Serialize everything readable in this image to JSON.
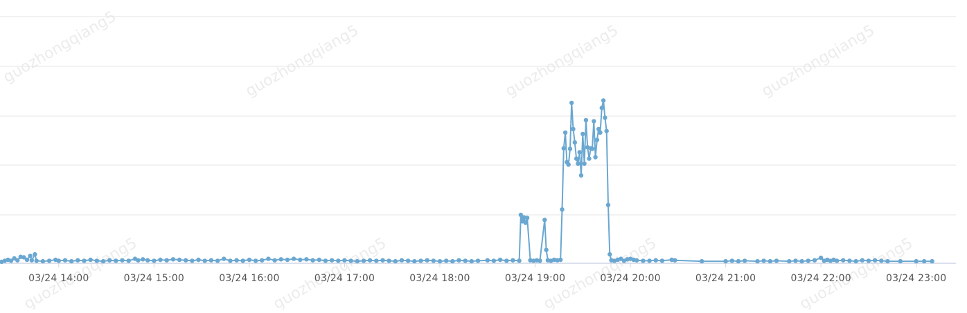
{
  "theme": {
    "series_color": "#6aa7d1",
    "grid_color": "#e6e6e6",
    "axis_color": "#cfd6e6"
  },
  "watermark": "guozhongqiang5",
  "chart_data": {
    "type": "line",
    "title": "",
    "xlabel": "",
    "ylabel": "",
    "y_tick_labels_visible": false,
    "grid": true,
    "x_axis": {
      "ticks": [
        "03/24 14:00",
        "03/24 15:00",
        "03/24 16:00",
        "03/24 17:00",
        "03/24 18:00",
        "03/24 19:00",
        "03/24 20:00",
        "03/24 21:00",
        "03/24 22:00",
        "03/24 23:00"
      ],
      "range": [
        "03/24 13:23",
        "03/24 23:25"
      ]
    },
    "ylim": [
      0,
      5
    ],
    "series": [
      {
        "color": "#6aa7d1",
        "points": [
          [
            "13:24",
            0.03
          ],
          [
            "13:26",
            0.05
          ],
          [
            "13:28",
            0.07
          ],
          [
            "13:30",
            0.05
          ],
          [
            "13:32",
            0.1
          ],
          [
            "13:34",
            0.06
          ],
          [
            "13:36",
            0.13
          ],
          [
            "13:38",
            0.12
          ],
          [
            "13:40",
            0.07
          ],
          [
            "13:42",
            0.15
          ],
          [
            "13:43",
            0.06
          ],
          [
            "13:45",
            0.18
          ],
          [
            "13:46",
            0.05
          ],
          [
            "13:50",
            0.04
          ],
          [
            "13:54",
            0.05
          ],
          [
            "13:58",
            0.07
          ],
          [
            "14:00",
            0.05
          ],
          [
            "14:04",
            0.06
          ],
          [
            "14:08",
            0.04
          ],
          [
            "14:12",
            0.06
          ],
          [
            "14:16",
            0.05
          ],
          [
            "14:20",
            0.07
          ],
          [
            "14:24",
            0.05
          ],
          [
            "14:28",
            0.04
          ],
          [
            "14:32",
            0.06
          ],
          [
            "14:36",
            0.05
          ],
          [
            "14:40",
            0.06
          ],
          [
            "14:44",
            0.05
          ],
          [
            "14:48",
            0.09
          ],
          [
            "14:50",
            0.06
          ],
          [
            "14:53",
            0.08
          ],
          [
            "14:56",
            0.06
          ],
          [
            "15:00",
            0.05
          ],
          [
            "15:04",
            0.07
          ],
          [
            "15:08",
            0.06
          ],
          [
            "15:12",
            0.08
          ],
          [
            "15:16",
            0.07
          ],
          [
            "15:20",
            0.06
          ],
          [
            "15:24",
            0.05
          ],
          [
            "15:28",
            0.07
          ],
          [
            "15:32",
            0.05
          ],
          [
            "15:36",
            0.06
          ],
          [
            "15:40",
            0.05
          ],
          [
            "15:44",
            0.09
          ],
          [
            "15:48",
            0.05
          ],
          [
            "15:52",
            0.06
          ],
          [
            "15:56",
            0.05
          ],
          [
            "16:00",
            0.07
          ],
          [
            "16:04",
            0.05
          ],
          [
            "16:08",
            0.06
          ],
          [
            "16:12",
            0.09
          ],
          [
            "16:16",
            0.06
          ],
          [
            "16:20",
            0.08
          ],
          [
            "16:24",
            0.07
          ],
          [
            "16:28",
            0.09
          ],
          [
            "16:32",
            0.07
          ],
          [
            "16:36",
            0.08
          ],
          [
            "16:40",
            0.06
          ],
          [
            "16:44",
            0.07
          ],
          [
            "16:48",
            0.05
          ],
          [
            "16:52",
            0.06
          ],
          [
            "16:56",
            0.05
          ],
          [
            "17:00",
            0.06
          ],
          [
            "17:04",
            0.05
          ],
          [
            "17:08",
            0.04
          ],
          [
            "17:12",
            0.05
          ],
          [
            "17:16",
            0.06
          ],
          [
            "17:20",
            0.05
          ],
          [
            "17:24",
            0.06
          ],
          [
            "17:28",
            0.05
          ],
          [
            "17:32",
            0.04
          ],
          [
            "17:36",
            0.06
          ],
          [
            "17:40",
            0.05
          ],
          [
            "17:44",
            0.04
          ],
          [
            "17:48",
            0.05
          ],
          [
            "17:52",
            0.06
          ],
          [
            "17:56",
            0.05
          ],
          [
            "18:00",
            0.04
          ],
          [
            "18:04",
            0.05
          ],
          [
            "18:08",
            0.04
          ],
          [
            "18:12",
            0.06
          ],
          [
            "18:16",
            0.05
          ],
          [
            "18:20",
            0.04
          ],
          [
            "18:24",
            0.05
          ],
          [
            "18:30",
            0.06
          ],
          [
            "18:34",
            0.05
          ],
          [
            "18:38",
            0.07
          ],
          [
            "18:42",
            0.05
          ],
          [
            "18:46",
            0.06
          ],
          [
            "18:50",
            0.05
          ],
          [
            "18:51",
            0.98
          ],
          [
            "18:52",
            0.85
          ],
          [
            "18:53",
            0.93
          ],
          [
            "18:54",
            0.82
          ],
          [
            "18:55",
            0.92
          ],
          [
            "18:57",
            0.06
          ],
          [
            "18:59",
            0.05
          ],
          [
            "19:01",
            0.06
          ],
          [
            "19:03",
            0.05
          ],
          [
            "19:06",
            0.88
          ],
          [
            "19:07",
            0.27
          ],
          [
            "19:08",
            0.06
          ],
          [
            "19:10",
            0.05
          ],
          [
            "19:12",
            0.07
          ],
          [
            "19:14",
            0.06
          ],
          [
            "19:16",
            0.07
          ],
          [
            "19:17",
            1.09
          ],
          [
            "19:18",
            2.33
          ],
          [
            "19:19",
            2.65
          ],
          [
            "19:20",
            2.05
          ],
          [
            "19:21",
            2.0
          ],
          [
            "19:22",
            2.32
          ],
          [
            "19:23",
            3.25
          ],
          [
            "19:24",
            2.72
          ],
          [
            "19:25",
            2.45
          ],
          [
            "19:26",
            2.12
          ],
          [
            "19:27",
            2.02
          ],
          [
            "19:28",
            2.25
          ],
          [
            "19:29",
            1.78
          ],
          [
            "19:30",
            2.62
          ],
          [
            "19:31",
            2.02
          ],
          [
            "19:32",
            2.9
          ],
          [
            "19:33",
            2.35
          ],
          [
            "19:34",
            2.12
          ],
          [
            "19:35",
            2.33
          ],
          [
            "19:36",
            2.32
          ],
          [
            "19:37",
            2.88
          ],
          [
            "19:38",
            2.15
          ],
          [
            "19:39",
            2.5
          ],
          [
            "19:40",
            2.72
          ],
          [
            "19:41",
            2.65
          ],
          [
            "19:42",
            3.15
          ],
          [
            "19:43",
            3.3
          ],
          [
            "19:44",
            2.95
          ],
          [
            "19:45",
            2.68
          ],
          [
            "19:46",
            1.18
          ],
          [
            "19:47",
            0.18
          ],
          [
            "19:48",
            0.06
          ],
          [
            "19:50",
            0.05
          ],
          [
            "19:52",
            0.07
          ],
          [
            "19:54",
            0.09
          ],
          [
            "19:56",
            0.05
          ],
          [
            "19:58",
            0.08
          ],
          [
            "20:00",
            0.09
          ],
          [
            "20:02",
            0.07
          ],
          [
            "20:04",
            0.06
          ],
          [
            "20:08",
            0.05
          ],
          [
            "20:12",
            0.05
          ],
          [
            "20:16",
            0.06
          ],
          [
            "20:20",
            0.05
          ],
          [
            "20:26",
            0.07
          ],
          [
            "20:28",
            0.06
          ],
          [
            "20:45",
            0.04
          ],
          [
            "21:00",
            0.04
          ],
          [
            "21:04",
            0.05
          ],
          [
            "21:08",
            0.04
          ],
          [
            "21:12",
            0.05
          ],
          [
            "21:20",
            0.04
          ],
          [
            "21:24",
            0.05
          ],
          [
            "21:28",
            0.04
          ],
          [
            "21:32",
            0.05
          ],
          [
            "21:40",
            0.04
          ],
          [
            "21:44",
            0.05
          ],
          [
            "21:48",
            0.04
          ],
          [
            "21:52",
            0.05
          ],
          [
            "21:56",
            0.06
          ],
          [
            "22:00",
            0.11
          ],
          [
            "22:02",
            0.05
          ],
          [
            "22:04",
            0.07
          ],
          [
            "22:06",
            0.05
          ],
          [
            "22:08",
            0.07
          ],
          [
            "22:10",
            0.05
          ],
          [
            "22:14",
            0.06
          ],
          [
            "22:18",
            0.05
          ],
          [
            "22:22",
            0.04
          ],
          [
            "22:26",
            0.06
          ],
          [
            "22:30",
            0.05
          ],
          [
            "22:34",
            0.06
          ],
          [
            "22:38",
            0.05
          ],
          [
            "22:42",
            0.04
          ],
          [
            "22:50",
            0.04
          ],
          [
            "23:00",
            0.04
          ],
          [
            "23:05",
            0.04
          ],
          [
            "23:10",
            0.04
          ]
        ]
      }
    ]
  }
}
